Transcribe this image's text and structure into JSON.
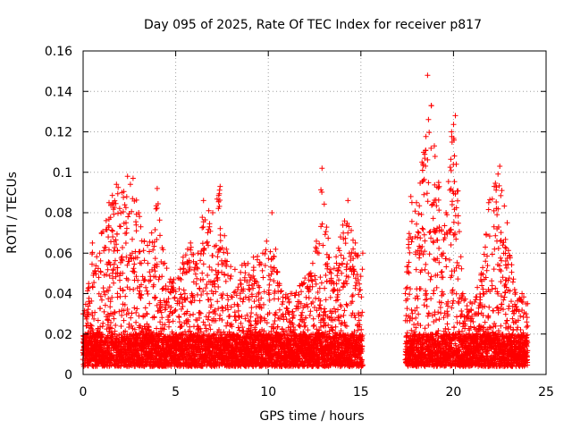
{
  "chart_data": {
    "type": "scatter",
    "title": "Day 095 of 2025, Rate Of TEC Index for receiver p817",
    "xlabel": "GPS time / hours",
    "ylabel": "ROTI / TECUs",
    "xlim": [
      0,
      25
    ],
    "ylim": [
      0,
      0.16
    ],
    "xticks": [
      0,
      5,
      10,
      15,
      20,
      25
    ],
    "yticks": [
      0,
      0.02,
      0.04,
      0.06,
      0.08,
      0.1,
      0.12,
      0.14,
      0.16
    ],
    "xtick_labels": [
      "0",
      "5",
      "10",
      "15",
      "20",
      "25"
    ],
    "ytick_labels": [
      "0",
      "0.02",
      "0.04",
      "0.06",
      "0.08",
      "0.1",
      "0.12",
      "0.14",
      "0.16"
    ],
    "grid": true,
    "marker": "+",
    "color": "#ff0000",
    "data_gap_hours": [
      15.2,
      17.3
    ],
    "series": [
      {
        "envelope_points": [
          {
            "x": 0.0,
            "y": 0.03
          },
          {
            "x": 0.3,
            "y": 0.045
          },
          {
            "x": 0.5,
            "y": 0.065
          },
          {
            "x": 0.9,
            "y": 0.06
          },
          {
            "x": 1.0,
            "y": 0.07
          },
          {
            "x": 1.4,
            "y": 0.085
          },
          {
            "x": 1.8,
            "y": 0.094
          },
          {
            "x": 2.1,
            "y": 0.09
          },
          {
            "x": 2.4,
            "y": 0.098
          },
          {
            "x": 2.7,
            "y": 0.097
          },
          {
            "x": 3.0,
            "y": 0.08
          },
          {
            "x": 3.3,
            "y": 0.066
          },
          {
            "x": 3.7,
            "y": 0.07
          },
          {
            "x": 4.0,
            "y": 0.092
          },
          {
            "x": 4.4,
            "y": 0.055
          },
          {
            "x": 4.9,
            "y": 0.047
          },
          {
            "x": 5.4,
            "y": 0.058
          },
          {
            "x": 5.8,
            "y": 0.065
          },
          {
            "x": 6.2,
            "y": 0.06
          },
          {
            "x": 6.5,
            "y": 0.086
          },
          {
            "x": 7.0,
            "y": 0.08
          },
          {
            "x": 7.4,
            "y": 0.093
          },
          {
            "x": 7.8,
            "y": 0.06
          },
          {
            "x": 8.2,
            "y": 0.052
          },
          {
            "x": 8.7,
            "y": 0.055
          },
          {
            "x": 9.2,
            "y": 0.058
          },
          {
            "x": 9.7,
            "y": 0.06
          },
          {
            "x": 10.2,
            "y": 0.08
          },
          {
            "x": 10.6,
            "y": 0.045
          },
          {
            "x": 11.2,
            "y": 0.04
          },
          {
            "x": 11.8,
            "y": 0.045
          },
          {
            "x": 12.4,
            "y": 0.055
          },
          {
            "x": 12.9,
            "y": 0.102
          },
          {
            "x": 13.4,
            "y": 0.05
          },
          {
            "x": 13.9,
            "y": 0.068
          },
          {
            "x": 14.3,
            "y": 0.086
          },
          {
            "x": 14.7,
            "y": 0.065
          },
          {
            "x": 15.1,
            "y": 0.06
          },
          {
            "x": 17.4,
            "y": 0.04
          },
          {
            "x": 17.7,
            "y": 0.088
          },
          {
            "x": 18.0,
            "y": 0.085
          },
          {
            "x": 18.3,
            "y": 0.105
          },
          {
            "x": 18.6,
            "y": 0.148
          },
          {
            "x": 18.8,
            "y": 0.133
          },
          {
            "x": 19.2,
            "y": 0.095
          },
          {
            "x": 19.6,
            "y": 0.08
          },
          {
            "x": 19.9,
            "y": 0.12
          },
          {
            "x": 20.1,
            "y": 0.128
          },
          {
            "x": 20.5,
            "y": 0.04
          },
          {
            "x": 21.0,
            "y": 0.035
          },
          {
            "x": 21.5,
            "y": 0.05
          },
          {
            "x": 21.9,
            "y": 0.085
          },
          {
            "x": 22.2,
            "y": 0.093
          },
          {
            "x": 22.5,
            "y": 0.103
          },
          {
            "x": 22.9,
            "y": 0.075
          },
          {
            "x": 23.3,
            "y": 0.042
          },
          {
            "x": 23.7,
            "y": 0.04
          },
          {
            "x": 24.0,
            "y": 0.035
          }
        ],
        "baseline_range": [
          0.004,
          0.02
        ]
      }
    ]
  }
}
